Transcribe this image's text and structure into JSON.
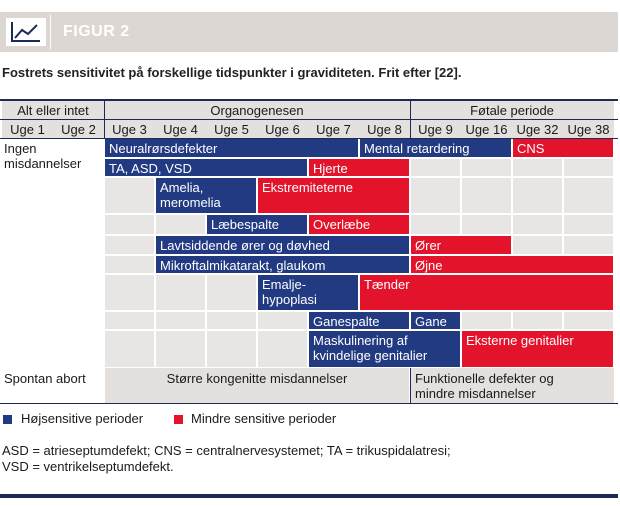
{
  "figure": {
    "label": "FIGUR 2",
    "caption": "Fostrets sensitivitet på forskellige tidspunkter i graviditeten. Frit efter [22]."
  },
  "periods": [
    "Alt eller intet",
    "Organogenesen",
    "Føtale periode"
  ],
  "weeks": [
    "Uge 1",
    "Uge 2",
    "Uge 3",
    "Uge 4",
    "Uge 5",
    "Uge 6",
    "Uge 7",
    "Uge 8",
    "Uge 9",
    "Uge 16",
    "Uge 32",
    "Uge 38"
  ],
  "row_labels": {
    "no_malformations": "Ingen\nmisdannelser",
    "abortion": "Spontan abort"
  },
  "bars": [
    {
      "label": "Neuralrørsdefekter",
      "sensitivity": "high"
    },
    {
      "label": "Mental retardering",
      "sensitivity": "high"
    },
    {
      "label": "CNS",
      "sensitivity": "low"
    },
    {
      "label": "TA, ASD, VSD",
      "sensitivity": "high"
    },
    {
      "label": "Hjerte",
      "sensitivity": "low"
    },
    {
      "label": "Amelia,\nmeromelia",
      "sensitivity": "high"
    },
    {
      "label": "Ekstremiteterne",
      "sensitivity": "low"
    },
    {
      "label": "Læbespalte",
      "sensitivity": "high"
    },
    {
      "label": "Overlæbe",
      "sensitivity": "low"
    },
    {
      "label": "Lavtsiddende ører og døvhed",
      "sensitivity": "high"
    },
    {
      "label": "Ører",
      "sensitivity": "low"
    },
    {
      "label": "Mikroftalmikatarakt, glaukom",
      "sensitivity": "high"
    },
    {
      "label": "Øjne",
      "sensitivity": "low"
    },
    {
      "label": "Emalje-\nhypoplasi",
      "sensitivity": "high"
    },
    {
      "label": "Tænder",
      "sensitivity": "low"
    },
    {
      "label": "Ganespalte",
      "sensitivity": "high"
    },
    {
      "label": "Gane",
      "sensitivity": "high"
    },
    {
      "label": "Maskulinering af\nkvindelige genitalier",
      "sensitivity": "high"
    },
    {
      "label": "Eksterne genitalier",
      "sensitivity": "low"
    }
  ],
  "bottom_row": {
    "organogenesis": "Større kongenitte misdannelser",
    "fetal": "Funktionelle defekter og\nmindre misdannelser"
  },
  "legend": {
    "high": "Højsensitive perioder",
    "low": "Mindre sensitive perioder"
  },
  "abbreviations": "ASD = atrieseptumdefekt; CNS = centralnervesystemet; TA = trikuspidalatresi;\nVSD = ventrikelseptumdefekt.",
  "colors": {
    "high": "#223a82",
    "low": "#e2132b",
    "banner": "#dcd7d3",
    "cell": "#e8e6e4",
    "rule": "#1c2a55"
  }
}
